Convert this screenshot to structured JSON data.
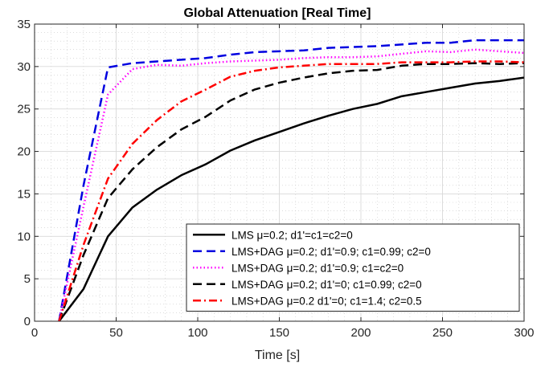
{
  "chart_data": {
    "type": "line",
    "title": "Global Attenuation [Real Time]",
    "xlabel": "Time [s]",
    "ylabel": "",
    "xlim": [
      0,
      300
    ],
    "ylim": [
      0,
      35
    ],
    "xticks": [
      0,
      50,
      100,
      150,
      200,
      250,
      300
    ],
    "yticks": [
      0,
      5,
      10,
      15,
      20,
      25,
      30,
      35
    ],
    "grid": true,
    "minor_grid": true,
    "legend_position": "bottom-right",
    "series": [
      {
        "name": "LMS μ=0.2; d1'=c1=c2=0",
        "color": "#000000",
        "dash": "solid",
        "x": [
          15,
          30,
          45,
          60,
          75,
          90,
          105,
          120,
          135,
          150,
          165,
          180,
          195,
          210,
          225,
          240,
          255,
          270,
          285,
          300
        ],
        "y": [
          0,
          3.8,
          10.0,
          13.4,
          15.5,
          17.2,
          18.5,
          20.1,
          21.3,
          22.3,
          23.3,
          24.2,
          25.0,
          25.6,
          26.5,
          27.0,
          27.5,
          28.0,
          28.3,
          28.7
        ]
      },
      {
        "name": "LMS+DAG  μ=0.2; d1'=0.9; c1=0.99; c2=0",
        "color": "#0000e0",
        "dash": "dashed",
        "x": [
          15,
          30,
          45,
          60,
          75,
          90,
          105,
          120,
          135,
          150,
          165,
          180,
          195,
          210,
          225,
          240,
          255,
          270,
          285,
          300
        ],
        "y": [
          0,
          16.0,
          29.9,
          30.4,
          30.6,
          30.8,
          31.0,
          31.4,
          31.7,
          31.8,
          31.9,
          32.2,
          32.3,
          32.4,
          32.6,
          32.8,
          32.8,
          33.1,
          33.1,
          33.1
        ]
      },
      {
        "name": "LMS+DAG  μ=0.2; d1'=0.9; c1=c2=0",
        "color": "#ff00ff",
        "dash": "dotted",
        "x": [
          15,
          30,
          45,
          60,
          75,
          90,
          105,
          120,
          135,
          150,
          165,
          180,
          195,
          210,
          225,
          240,
          255,
          270,
          285,
          300
        ],
        "y": [
          0,
          13.5,
          26.7,
          29.7,
          30.2,
          30.1,
          30.4,
          30.6,
          30.7,
          30.8,
          31.0,
          31.1,
          31.1,
          31.2,
          31.5,
          31.8,
          31.7,
          32.0,
          31.8,
          31.6
        ]
      },
      {
        "name": "LMS+DAG  μ=0.2; d1'=0; c1=0.99; c2=0",
        "color": "#000000",
        "dash": "dashed",
        "x": [
          15,
          30,
          45,
          60,
          75,
          90,
          105,
          120,
          135,
          150,
          165,
          180,
          195,
          210,
          225,
          240,
          255,
          270,
          285,
          300
        ],
        "y": [
          0,
          7.8,
          14.5,
          17.9,
          20.5,
          22.6,
          24.1,
          26.0,
          27.3,
          28.1,
          28.7,
          29.2,
          29.5,
          29.6,
          30.1,
          30.3,
          30.3,
          30.4,
          30.3,
          30.4
        ]
      },
      {
        "name": "LMS+DAG  μ=0.2 d1'=0; c1=1.4; c2=0.5",
        "color": "#ff0000",
        "dash": "dashdot",
        "x": [
          15,
          30,
          45,
          60,
          75,
          90,
          105,
          120,
          135,
          150,
          165,
          180,
          195,
          210,
          225,
          240,
          255,
          270,
          285,
          300
        ],
        "y": [
          0,
          9.0,
          16.8,
          20.9,
          23.7,
          25.9,
          27.3,
          28.8,
          29.5,
          29.9,
          30.1,
          30.3,
          30.3,
          30.3,
          30.5,
          30.5,
          30.5,
          30.6,
          30.6,
          30.5
        ]
      }
    ]
  }
}
